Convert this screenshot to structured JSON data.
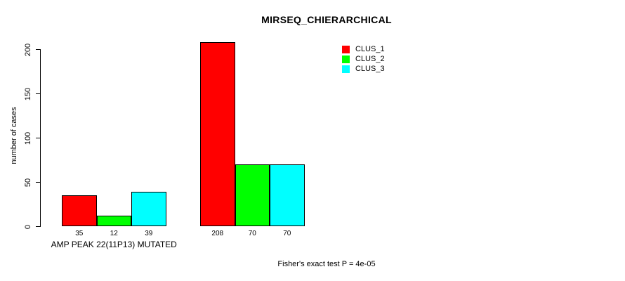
{
  "chart_data": {
    "type": "bar",
    "title": "MIRSEQ_CHIERARCHICAL",
    "ylabel": "number of cases",
    "xlabel": "",
    "ylim": [
      0,
      200
    ],
    "yticks": [
      0,
      50,
      100,
      150,
      200
    ],
    "grid": false,
    "legend_position": "top-right-inside",
    "series": [
      {
        "name": "CLUS_1",
        "color": "#ff0000"
      },
      {
        "name": "CLUS_2",
        "color": "#00ff00"
      },
      {
        "name": "CLUS_3",
        "color": "#00ffff"
      }
    ],
    "categories": [
      "AMP PEAK 22(11P13) MUTATED",
      ""
    ],
    "groups": [
      {
        "label": "AMP PEAK 22(11P13) MUTATED",
        "values": [
          35,
          12,
          39
        ]
      },
      {
        "label": "",
        "values": [
          208,
          70,
          70
        ]
      }
    ],
    "bar_value_labels": [
      [
        "35",
        "12",
        "39"
      ],
      [
        "208",
        "70",
        "70"
      ]
    ],
    "footer": "Fisher's exact test P = 4e-05",
    "bar_border_color": "#000000",
    "axis_color": "#000000",
    "background_color": "#ffffff"
  }
}
